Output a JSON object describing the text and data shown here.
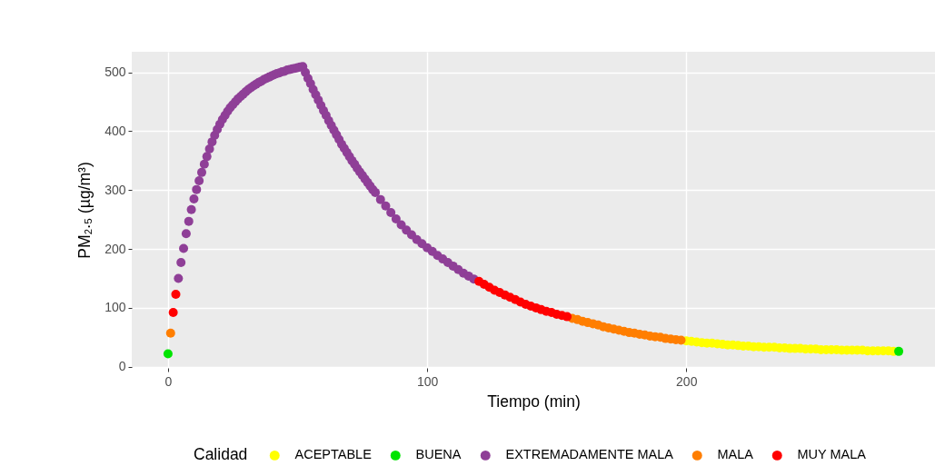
{
  "chart_data": {
    "type": "scatter",
    "xlabel": "Tiempo (min)",
    "ylabel": "PM₂.₅ (µg/m³)",
    "legend_title": "Calidad",
    "xlim": [
      -14,
      296
    ],
    "ylim": [
      -2,
      535
    ],
    "xticks": [
      0,
      100,
      200
    ],
    "yticks": [
      0,
      100,
      200,
      300,
      400,
      500
    ],
    "grid": true,
    "legend": "bottom",
    "marker": "circle",
    "series": [
      {
        "name": "ACEPTABLE",
        "color": "#ffff00",
        "x": [
          200,
          202,
          204,
          206,
          208,
          210,
          212,
          214,
          216,
          218,
          220,
          222,
          224,
          226,
          228,
          230,
          232,
          234,
          236,
          238,
          240,
          242,
          244,
          246,
          248,
          250,
          252,
          254,
          256,
          258,
          260,
          262,
          264,
          266,
          268,
          270,
          272,
          274,
          276,
          278,
          280
        ],
        "values": [
          44,
          43,
          42,
          41,
          40,
          40,
          39,
          38,
          37,
          37,
          36,
          35,
          35,
          34,
          34,
          33,
          33,
          33,
          32,
          32,
          31,
          31,
          31,
          30,
          30,
          30,
          29,
          29,
          29,
          29,
          28,
          28,
          28,
          28,
          28,
          27,
          27,
          27,
          27,
          27,
          26
        ]
      },
      {
        "name": "BUENA",
        "color": "#00e400",
        "x": [
          0,
          282
        ],
        "values": [
          22,
          26
        ]
      },
      {
        "name": "EXTREMADAMENTE MALA",
        "color": "#8f3f97",
        "x": [
          4,
          5,
          6,
          7,
          8,
          9,
          10,
          11,
          12,
          13,
          14,
          15,
          16,
          17,
          18,
          19,
          20,
          21,
          22,
          23,
          24,
          25,
          26,
          27,
          28,
          29,
          30,
          31,
          32,
          33,
          34,
          35,
          36,
          37,
          38,
          39,
          40,
          41,
          42,
          43,
          44,
          45,
          46,
          47,
          48,
          49,
          50,
          51,
          52,
          53,
          54,
          55,
          56,
          57,
          58,
          59,
          60,
          61,
          62,
          63,
          64,
          65,
          66,
          67,
          68,
          69,
          70,
          71,
          72,
          73,
          74,
          75,
          76,
          77,
          78,
          79,
          80,
          82,
          84,
          86,
          88,
          90,
          92,
          94,
          96,
          98,
          100,
          102,
          104,
          106,
          108,
          110,
          112,
          114,
          116,
          118
        ],
        "values": [
          150,
          177,
          201,
          226,
          247,
          267,
          285,
          301,
          316,
          330,
          344,
          357,
          370,
          382,
          393,
          403,
          412,
          420,
          427,
          434,
          440,
          445,
          450,
          455,
          459,
          463,
          467,
          471,
          474,
          477,
          480,
          483,
          485,
          488,
          490,
          492,
          494,
          496,
          498,
          499,
          501,
          502,
          504,
          505,
          506,
          507,
          508,
          509,
          510,
          500,
          490,
          481,
          471,
          462,
          453,
          444,
          435,
          427,
          418,
          410,
          402,
          394,
          386,
          378,
          371,
          364,
          357,
          350,
          344,
          337,
          331,
          325,
          319,
          313,
          307,
          301,
          296,
          284,
          273,
          262,
          251,
          241,
          232,
          224,
          216,
          209,
          202,
          196,
          189,
          183,
          177,
          171,
          165,
          159,
          154,
          149
        ]
      },
      {
        "name": "MALA",
        "color": "#ff7e00",
        "x": [
          1,
          156,
          158,
          160,
          162,
          164,
          166,
          168,
          170,
          172,
          174,
          176,
          178,
          180,
          182,
          184,
          186,
          188,
          190,
          192,
          194,
          196,
          198
        ],
        "values": [
          57,
          82,
          80,
          77,
          75,
          73,
          71,
          68,
          66,
          64,
          62,
          60,
          58,
          57,
          55,
          54,
          52,
          51,
          50,
          48,
          47,
          46,
          45
        ]
      },
      {
        "name": "MUY MALA",
        "color": "#ff0000",
        "x": [
          2,
          3,
          120,
          122,
          124,
          126,
          128,
          130,
          132,
          134,
          136,
          138,
          140,
          142,
          144,
          146,
          148,
          150,
          152,
          154
        ],
        "values": [
          92,
          123,
          145,
          140,
          135,
          130,
          126,
          122,
          118,
          114,
          110,
          106,
          103,
          100,
          97,
          94,
          92,
          89,
          87,
          85
        ]
      }
    ]
  }
}
